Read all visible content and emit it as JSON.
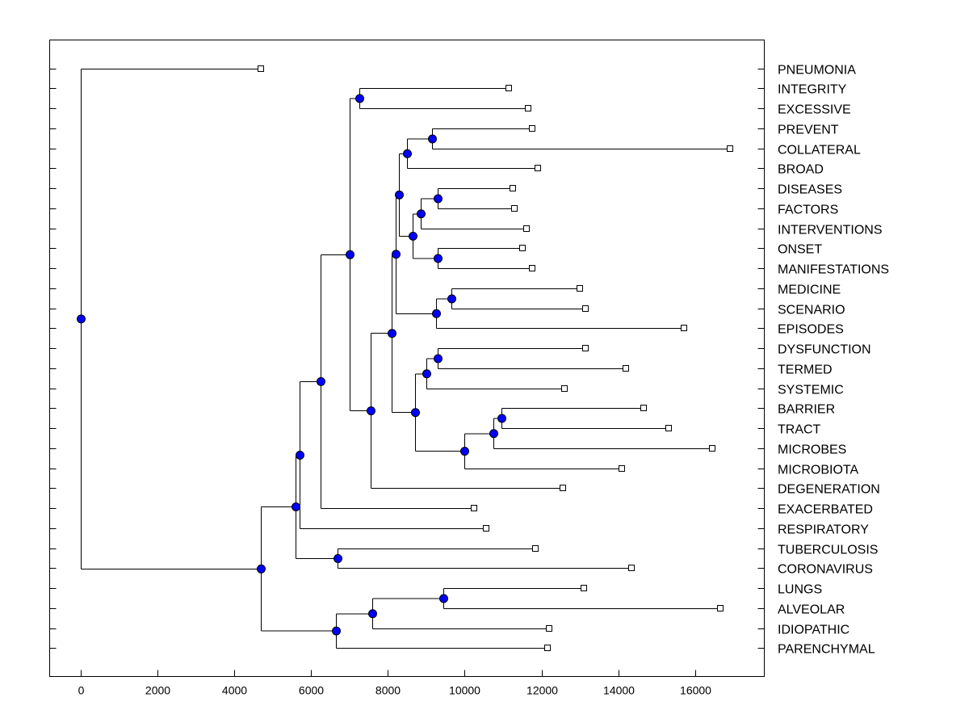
{
  "chart_data": {
    "type": "dendrogram",
    "title": "",
    "xlabel": "",
    "ylabel": "",
    "xlim": [
      -800,
      17800
    ],
    "xticks": [
      0,
      2000,
      4000,
      6000,
      8000,
      10000,
      12000,
      14000,
      16000
    ],
    "node_color": "#0000ff",
    "leaf_color": "#ffffff",
    "leaves": [
      {
        "label": "PNEUMONIA",
        "x": 4700
      },
      {
        "label": "INTEGRITY",
        "x": 11150
      },
      {
        "label": "EXCESSIVE",
        "x": 11650
      },
      {
        "label": "PREVENT",
        "x": 11750
      },
      {
        "label": "COLLATERAL",
        "x": 16900
      },
      {
        "label": "BROAD",
        "x": 11900
      },
      {
        "label": "DISEASES",
        "x": 11250
      },
      {
        "label": "FACTORS",
        "x": 11300
      },
      {
        "label": "INTERVENTIONS",
        "x": 11600
      },
      {
        "label": "ONSET",
        "x": 11500
      },
      {
        "label": "MANIFESTATIONS",
        "x": 11750
      },
      {
        "label": "MEDICINE",
        "x": 13000
      },
      {
        "label": "SCENARIO",
        "x": 13150
      },
      {
        "label": "EPISODES",
        "x": 15700
      },
      {
        "label": "DYSFUNCTION",
        "x": 13150
      },
      {
        "label": "TERMED",
        "x": 14200
      },
      {
        "label": "SYSTEMIC",
        "x": 12600
      },
      {
        "label": "BARRIER",
        "x": 14650
      },
      {
        "label": "TRACT",
        "x": 15300
      },
      {
        "label": "MICROBES",
        "x": 16450
      },
      {
        "label": "MICROBIOTA",
        "x": 14100
      },
      {
        "label": "DEGENERATION",
        "x": 12550
      },
      {
        "label": "EXACERBATED",
        "x": 10250
      },
      {
        "label": "RESPIRATORY",
        "x": 10550
      },
      {
        "label": "TUBERCULOSIS",
        "x": 11850
      },
      {
        "label": "CORONAVIRUS",
        "x": 14350
      },
      {
        "label": "LUNGS",
        "x": 13100
      },
      {
        "label": "ALVEOLAR",
        "x": 16650
      },
      {
        "label": "IDIOPATHIC",
        "x": 12200
      },
      {
        "label": "PARENCHYMAL",
        "x": 12150
      }
    ],
    "merges": [
      {
        "id": "n1",
        "x": 7250,
        "children": [
          "INTEGRITY",
          "EXCESSIVE"
        ]
      },
      {
        "id": "n2",
        "x": 9150,
        "children": [
          "PREVENT",
          "COLLATERAL"
        ]
      },
      {
        "id": "n3",
        "x": 8500,
        "children": [
          "n2",
          "BROAD"
        ]
      },
      {
        "id": "n4",
        "x": 9300,
        "children": [
          "DISEASES",
          "FACTORS"
        ]
      },
      {
        "id": "n5",
        "x": 8850,
        "children": [
          "n4",
          "INTERVENTIONS"
        ]
      },
      {
        "id": "n6",
        "x": 9300,
        "children": [
          "ONSET",
          "MANIFESTATIONS"
        ]
      },
      {
        "id": "n7",
        "x": 8650,
        "children": [
          "n5",
          "n6"
        ]
      },
      {
        "id": "n8",
        "x": 8300,
        "children": [
          "n3",
          "n7"
        ]
      },
      {
        "id": "n9",
        "x": 9650,
        "children": [
          "MEDICINE",
          "SCENARIO"
        ]
      },
      {
        "id": "n10",
        "x": 9250,
        "children": [
          "n9",
          "EPISODES"
        ]
      },
      {
        "id": "n11",
        "x": 8200,
        "children": [
          "n8",
          "n10"
        ]
      },
      {
        "id": "n12",
        "x": 9300,
        "children": [
          "DYSFUNCTION",
          "TERMED"
        ]
      },
      {
        "id": "n13",
        "x": 9000,
        "children": [
          "n12",
          "SYSTEMIC"
        ]
      },
      {
        "id": "n14",
        "x": 10950,
        "children": [
          "BARRIER",
          "TRACT"
        ]
      },
      {
        "id": "n15",
        "x": 10750,
        "children": [
          "n14",
          "MICROBES"
        ]
      },
      {
        "id": "n16",
        "x": 10000,
        "children": [
          "n15",
          "MICROBIOTA"
        ]
      },
      {
        "id": "n17",
        "x": 8700,
        "children": [
          "n13",
          "n16"
        ]
      },
      {
        "id": "n18",
        "x": 8100,
        "children": [
          "n11",
          "n17"
        ]
      },
      {
        "id": "n19",
        "x": 7550,
        "children": [
          "n18",
          "DEGENERATION"
        ]
      },
      {
        "id": "n20",
        "x": 7000,
        "children": [
          "n1",
          "n19"
        ]
      },
      {
        "id": "n21",
        "x": 6250,
        "children": [
          "n20",
          "EXACERBATED"
        ]
      },
      {
        "id": "n22",
        "x": 5700,
        "children": [
          "n21",
          "RESPIRATORY"
        ]
      },
      {
        "id": "n23",
        "x": 6700,
        "children": [
          "TUBERCULOSIS",
          "CORONAVIRUS"
        ]
      },
      {
        "id": "n24",
        "x": 5600,
        "children": [
          "n22",
          "n23"
        ]
      },
      {
        "id": "n25",
        "x": 9450,
        "children": [
          "LUNGS",
          "ALVEOLAR"
        ]
      },
      {
        "id": "n26",
        "x": 7600,
        "children": [
          "n25",
          "IDIOPATHIC"
        ]
      },
      {
        "id": "n27",
        "x": 6650,
        "children": [
          "n26",
          "PARENCHYMAL"
        ]
      },
      {
        "id": "n28",
        "x": 4700,
        "children": [
          "n24",
          "n27"
        ]
      },
      {
        "id": "n29",
        "x": 0,
        "children": [
          "PNEUMONIA",
          "n28"
        ]
      }
    ]
  }
}
